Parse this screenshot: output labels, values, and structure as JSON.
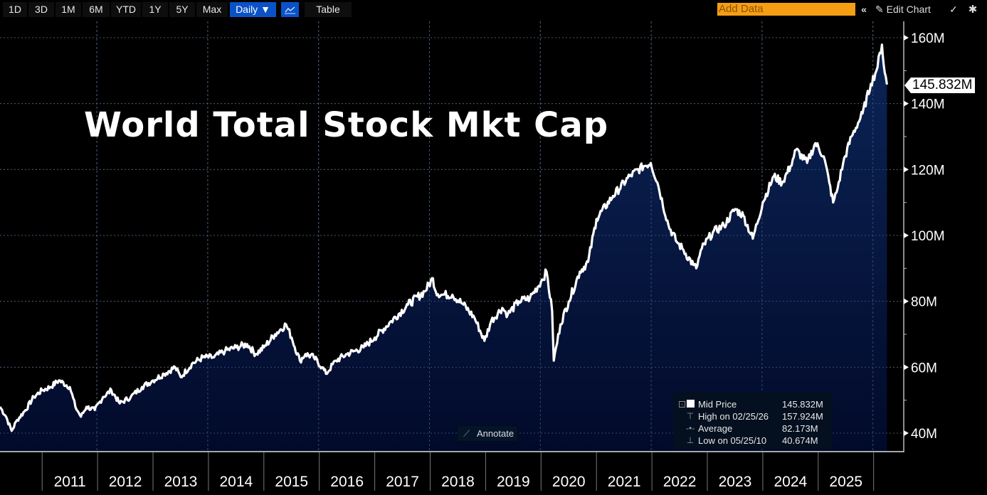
{
  "toolbar": {
    "ranges": [
      "1D",
      "3D",
      "1M",
      "6M",
      "YTD",
      "1Y",
      "5Y",
      "Max"
    ],
    "frequency": "Daily ▼",
    "chart_type_icon": "line-chart-icon",
    "table_label": "Table",
    "add_data_placeholder": "Add Data",
    "collapse_icon": "«",
    "edit_chart_label": "Edit Chart",
    "edit_icon": "✎",
    "annotate_toggle_icon": "✓",
    "settings_icon": "✱"
  },
  "annotate_label": "Annotate",
  "last_price_badge": "145.832M",
  "legend": {
    "rows": [
      {
        "label": "Mid Price",
        "value": "145.832M"
      },
      {
        "label": "High on 02/25/26",
        "value": "157.924M"
      },
      {
        "label": "Average",
        "value": "82.173M"
      },
      {
        "label": "Low on 05/25/10",
        "value": "40.674M"
      }
    ]
  },
  "colors": {
    "line": "#ffffff",
    "area_top": "#0b2456",
    "area_bottom": "#020a2a",
    "accent_blue": "#0a52c8",
    "add_data": "#f59e14"
  },
  "chart_data": {
    "type": "area",
    "title": "World Total Stock Mkt Cap",
    "xlabel": "",
    "ylabel": "",
    "ylim": [
      36,
      166
    ],
    "xlim": [
      2010.24,
      2026.5
    ],
    "y_ticks": [
      40,
      60,
      80,
      100,
      120,
      140,
      160
    ],
    "y_tick_labels": [
      "40M",
      "60M",
      "80M",
      "100M",
      "120M",
      "140M",
      "160M"
    ],
    "x_tick_labels": [
      "2011",
      "2012",
      "2013",
      "2014",
      "2015",
      "2016",
      "2017",
      "2018",
      "2019",
      "2020",
      "2021",
      "2022",
      "2023",
      "2024",
      "2025"
    ],
    "grid": true,
    "series": [
      {
        "name": "Mid Price",
        "unit": "M",
        "x": [
          2010.24,
          2010.35,
          2010.45,
          2010.55,
          2010.7,
          2010.85,
          2011.0,
          2011.15,
          2011.3,
          2011.5,
          2011.6,
          2011.7,
          2011.8,
          2011.95,
          2012.1,
          2012.25,
          2012.4,
          2012.6,
          2012.8,
          2013.0,
          2013.2,
          2013.4,
          2013.5,
          2013.7,
          2013.9,
          2014.1,
          2014.3,
          2014.5,
          2014.7,
          2014.85,
          2015.0,
          2015.2,
          2015.4,
          2015.5,
          2015.65,
          2015.75,
          2015.9,
          2016.05,
          2016.12,
          2016.3,
          2016.5,
          2016.65,
          2016.8,
          2017.0,
          2017.3,
          2017.6,
          2017.9,
          2018.05,
          2018.1,
          2018.2,
          2018.4,
          2018.6,
          2018.8,
          2018.98,
          2019.1,
          2019.3,
          2019.4,
          2019.6,
          2019.8,
          2020.0,
          2020.1,
          2020.2,
          2020.23,
          2020.35,
          2020.5,
          2020.7,
          2020.85,
          2021.0,
          2021.3,
          2021.6,
          2021.85,
          2021.98,
          2022.1,
          2022.3,
          2022.45,
          2022.55,
          2022.75,
          2022.8,
          2022.9,
          2023.1,
          2023.3,
          2023.5,
          2023.65,
          2023.82,
          2024.0,
          2024.2,
          2024.35,
          2024.5,
          2024.6,
          2024.8,
          2024.95,
          2025.1,
          2025.2,
          2025.27,
          2025.33,
          2025.45,
          2025.6,
          2025.8,
          2025.95,
          2026.05,
          2026.15,
          2026.18,
          2026.24
        ],
        "y": [
          48,
          45,
          40.7,
          44,
          47,
          51,
          53,
          54,
          56,
          54,
          48,
          45,
          48,
          47,
          51,
          53,
          49,
          51,
          54,
          56,
          58,
          60,
          57,
          61,
          63,
          63,
          65,
          66,
          67,
          64,
          66,
          70,
          73,
          69,
          62,
          64,
          63,
          60,
          58,
          62,
          64,
          65,
          66,
          69,
          74,
          79,
          83,
          87,
          83,
          82,
          82,
          79,
          75,
          68,
          74,
          78,
          76,
          80,
          81,
          86,
          89,
          77,
          62,
          73,
          80,
          89,
          92,
          105,
          112,
          118,
          121,
          122,
          116,
          103,
          98,
          96,
          91,
          90,
          96,
          101,
          103,
          108,
          106,
          99,
          110,
          118,
          116,
          121,
          126,
          122,
          128,
          124,
          116,
          110,
          113,
          122,
          130,
          137,
          146,
          150,
          157.9,
          152,
          145.8
        ]
      }
    ]
  }
}
